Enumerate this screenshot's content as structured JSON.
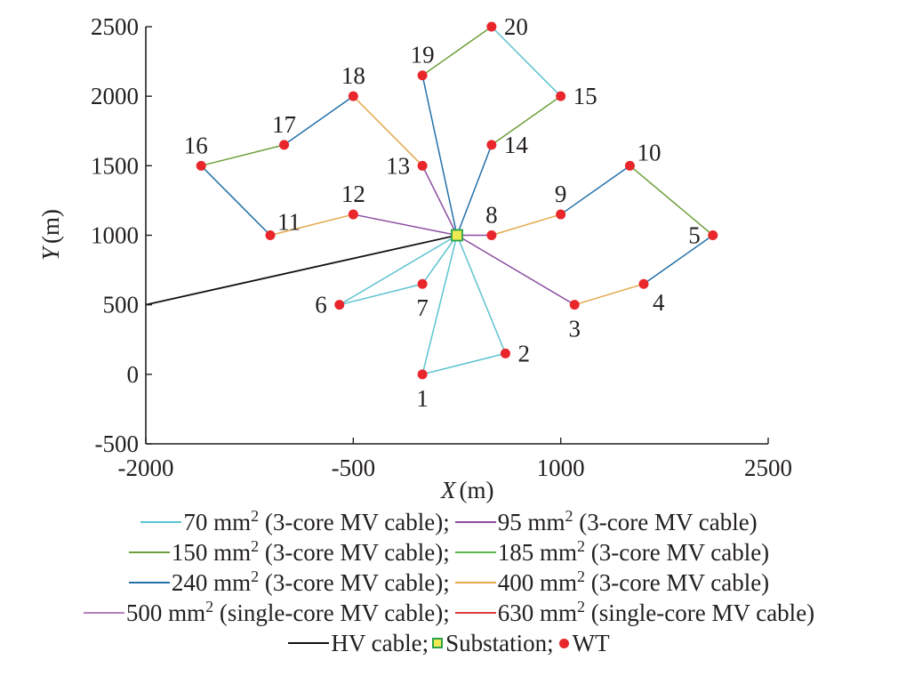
{
  "chart_data": {
    "type": "scatter",
    "xlabel": "X",
    "xunit": "(m)",
    "ylabel": "Y",
    "yunit": "(m)",
    "xlim": [
      -2000,
      2500
    ],
    "ylim": [
      -500,
      2500
    ],
    "xticks": [
      -2000,
      -500,
      1000,
      2500
    ],
    "yticks": [
      -500,
      0,
      500,
      1000,
      1500,
      2000,
      2500
    ],
    "grid": false,
    "legend_position": "bottom",
    "substation": {
      "x": 250,
      "y": 1000
    },
    "hv_cable_end": {
      "x": -2000,
      "y": 500
    },
    "turbines": [
      {
        "id": "1",
        "x": 0,
        "y": 0,
        "label_pos": "below"
      },
      {
        "id": "2",
        "x": 600,
        "y": 150,
        "label_pos": "right"
      },
      {
        "id": "3",
        "x": 1100,
        "y": 500,
        "label_pos": "below"
      },
      {
        "id": "4",
        "x": 1600,
        "y": 650,
        "label_pos": "below-right"
      },
      {
        "id": "5",
        "x": 2100,
        "y": 1000,
        "label_pos": "left"
      },
      {
        "id": "6",
        "x": -600,
        "y": 500,
        "label_pos": "left"
      },
      {
        "id": "7",
        "x": 0,
        "y": 650,
        "label_pos": "below"
      },
      {
        "id": "8",
        "x": 500,
        "y": 1000,
        "label_pos": "above"
      },
      {
        "id": "9",
        "x": 1000,
        "y": 1150,
        "label_pos": "above"
      },
      {
        "id": "10",
        "x": 1500,
        "y": 1500,
        "label_pos": "above-right"
      },
      {
        "id": "11",
        "x": -1100,
        "y": 1000,
        "label_pos": "above-right"
      },
      {
        "id": "12",
        "x": -500,
        "y": 1150,
        "label_pos": "above"
      },
      {
        "id": "13",
        "x": 0,
        "y": 1500,
        "label_pos": "left"
      },
      {
        "id": "14",
        "x": 500,
        "y": 1650,
        "label_pos": "right"
      },
      {
        "id": "15",
        "x": 1000,
        "y": 2000,
        "label_pos": "right"
      },
      {
        "id": "16",
        "x": -1600,
        "y": 1500,
        "label_pos": "above-left"
      },
      {
        "id": "17",
        "x": -1000,
        "y": 1650,
        "label_pos": "above"
      },
      {
        "id": "18",
        "x": -500,
        "y": 2000,
        "label_pos": "above"
      },
      {
        "id": "19",
        "x": 0,
        "y": 2150,
        "label_pos": "above"
      },
      {
        "id": "20",
        "x": 500,
        "y": 2500,
        "label_pos": "right"
      }
    ],
    "cables": [
      {
        "from": "S",
        "to": "1",
        "type": "70"
      },
      {
        "from": "1",
        "to": "2",
        "type": "70"
      },
      {
        "from": "S",
        "to": "2",
        "type": "70"
      },
      {
        "from": "S",
        "to": "6",
        "type": "70"
      },
      {
        "from": "6",
        "to": "7",
        "type": "70"
      },
      {
        "from": "S",
        "to": "7",
        "type": "70"
      },
      {
        "from": "S",
        "to": "3",
        "type": "95"
      },
      {
        "from": "3",
        "to": "4",
        "type": "400"
      },
      {
        "from": "4",
        "to": "5",
        "type": "240"
      },
      {
        "from": "5",
        "to": "10",
        "type": "150"
      },
      {
        "from": "10",
        "to": "9",
        "type": "240"
      },
      {
        "from": "9",
        "to": "8",
        "type": "400"
      },
      {
        "from": "S",
        "to": "8",
        "type": "95"
      },
      {
        "from": "S",
        "to": "12",
        "type": "95"
      },
      {
        "from": "12",
        "to": "11",
        "type": "400"
      },
      {
        "from": "11",
        "to": "16",
        "type": "240"
      },
      {
        "from": "16",
        "to": "17",
        "type": "150"
      },
      {
        "from": "17",
        "to": "18",
        "type": "240"
      },
      {
        "from": "18",
        "to": "13",
        "type": "400"
      },
      {
        "from": "S",
        "to": "13",
        "type": "95"
      },
      {
        "from": "S",
        "to": "19",
        "type": "240"
      },
      {
        "from": "19",
        "to": "20",
        "type": "150"
      },
      {
        "from": "20",
        "to": "15",
        "type": "70"
      },
      {
        "from": "15",
        "to": "14",
        "type": "150"
      },
      {
        "from": "S",
        "to": "14",
        "type": "240"
      },
      {
        "from": "S",
        "to": "HV",
        "type": "HV"
      }
    ],
    "cable_colors": {
      "70": "#5cc3d0",
      "95": "#8b4ea0",
      "150": "#6e9f3c",
      "185": "#5ab849",
      "240": "#2470a8",
      "400": "#e3a84a",
      "500": "#b77fbf",
      "630": "#e23a3a",
      "HV": "#111111"
    },
    "turbine_color": "#e8262b",
    "substation_fill": "#f0ea52",
    "substation_stroke": "#2aa24a",
    "legend": {
      "rows": [
        [
          {
            "key": "70",
            "size": "70 mm",
            "desc": " (3-core MV cable);"
          },
          {
            "key": "95",
            "size": "95 mm",
            "desc": " (3-core MV cable)"
          }
        ],
        [
          {
            "key": "150",
            "size": "150 mm",
            "desc": " (3-core MV cable);"
          },
          {
            "key": "185",
            "size": "185 mm",
            "desc": " (3-core MV cable)"
          }
        ],
        [
          {
            "key": "240",
            "size": "240 mm",
            "desc": " (3-core MV cable);"
          },
          {
            "key": "400",
            "size": "400 mm",
            "desc": " (3-core MV cable)"
          }
        ],
        [
          {
            "key": "500",
            "size": "500 mm",
            "desc": " (single-core MV cable);"
          },
          {
            "key": "630",
            "size": "630 mm",
            "desc": " (single-core MV cable)"
          }
        ]
      ],
      "sup": "2",
      "hv_label": "HV cable;",
      "substation_label": "Substation;",
      "wt_label": "WT"
    }
  }
}
